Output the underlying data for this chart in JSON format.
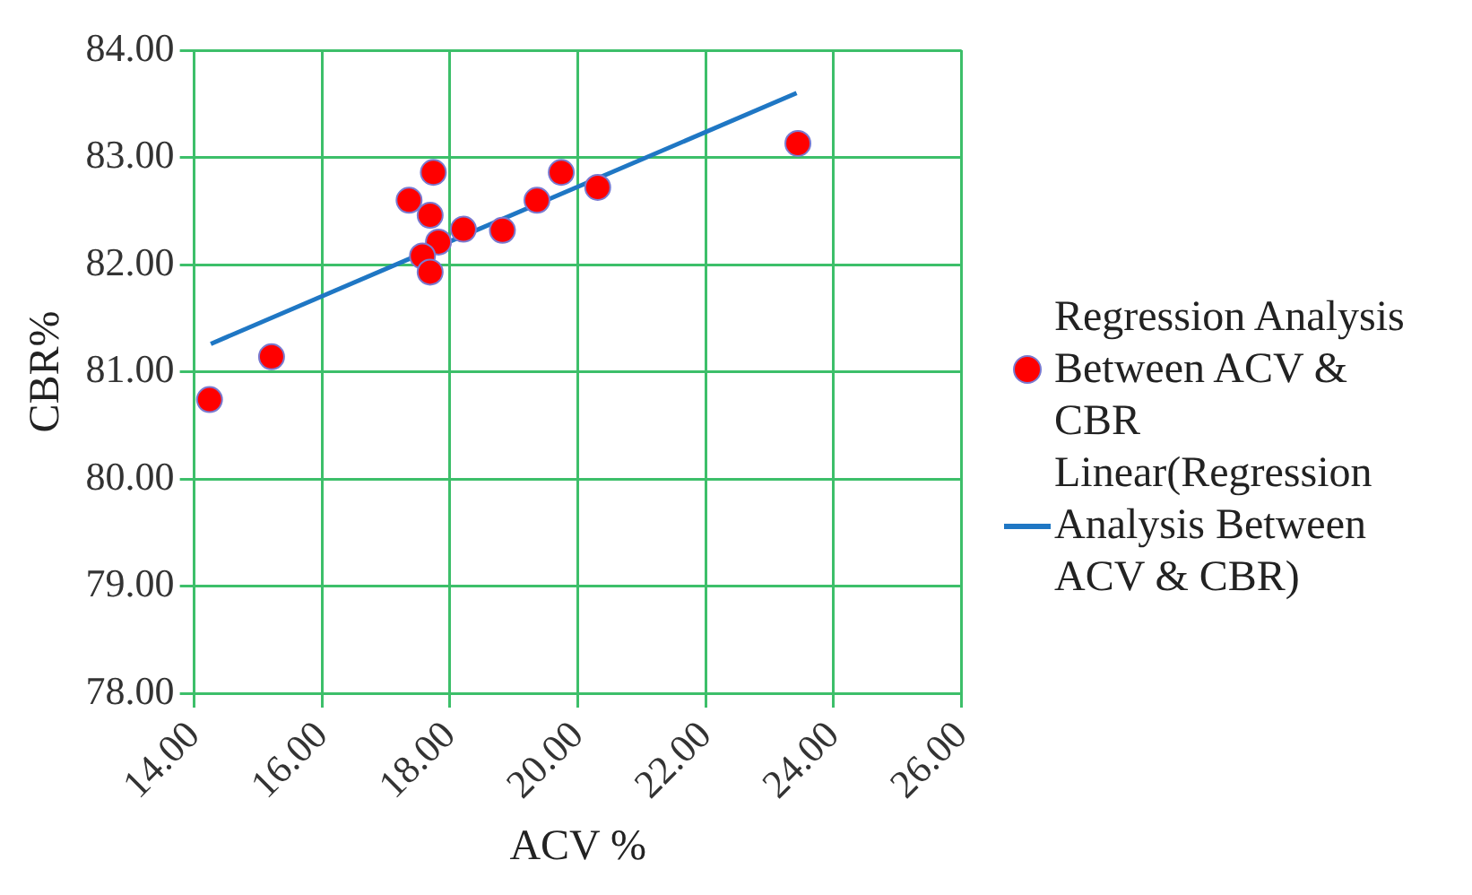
{
  "chart_data": {
    "type": "scatter",
    "xlabel": "ACV %",
    "ylabel": "CBR%",
    "xlim": [
      14,
      26
    ],
    "xticks": [
      {
        "value": 14,
        "label": "14.00"
      },
      {
        "value": 16,
        "label": "16.00"
      },
      {
        "value": 18,
        "label": "18.00"
      },
      {
        "value": 20,
        "label": "20.00"
      },
      {
        "value": 22,
        "label": "22.00"
      },
      {
        "value": 24,
        "label": "24.00"
      },
      {
        "value": 26,
        "label": "26.00"
      }
    ],
    "ylim": [
      78,
      84
    ],
    "yticks": [
      {
        "value": 78,
        "label": "78.00"
      },
      {
        "value": 79,
        "label": "79.00"
      },
      {
        "value": 80,
        "label": "80.00"
      },
      {
        "value": 81,
        "label": "81.00"
      },
      {
        "value": 82,
        "label": "82.00"
      },
      {
        "value": 83,
        "label": "83.00"
      },
      {
        "value": 84,
        "label": "84.00"
      }
    ],
    "grid": true,
    "legend": "right",
    "marker": "circle",
    "series": [
      {
        "name": "Regression Analysis Between ACV & CBR",
        "color": "#ff0000",
        "x": [
          14.24,
          15.21,
          17.36,
          17.74,
          17.69,
          17.82,
          17.57,
          17.69,
          18.21,
          18.82,
          19.36,
          19.74,
          20.31,
          23.44
        ],
        "values": [
          80.74,
          81.14,
          82.6,
          82.86,
          82.46,
          82.21,
          82.08,
          81.93,
          82.33,
          82.32,
          82.6,
          82.86,
          82.72,
          83.13
        ]
      },
      {
        "name": "Linear(Regression Analysis Between ACV & CBR)",
        "type": "line",
        "color": "#1f77c4",
        "marker": "none",
        "x": [
          14.26,
          23.42
        ],
        "values": [
          81.26,
          83.6
        ]
      }
    ]
  }
}
